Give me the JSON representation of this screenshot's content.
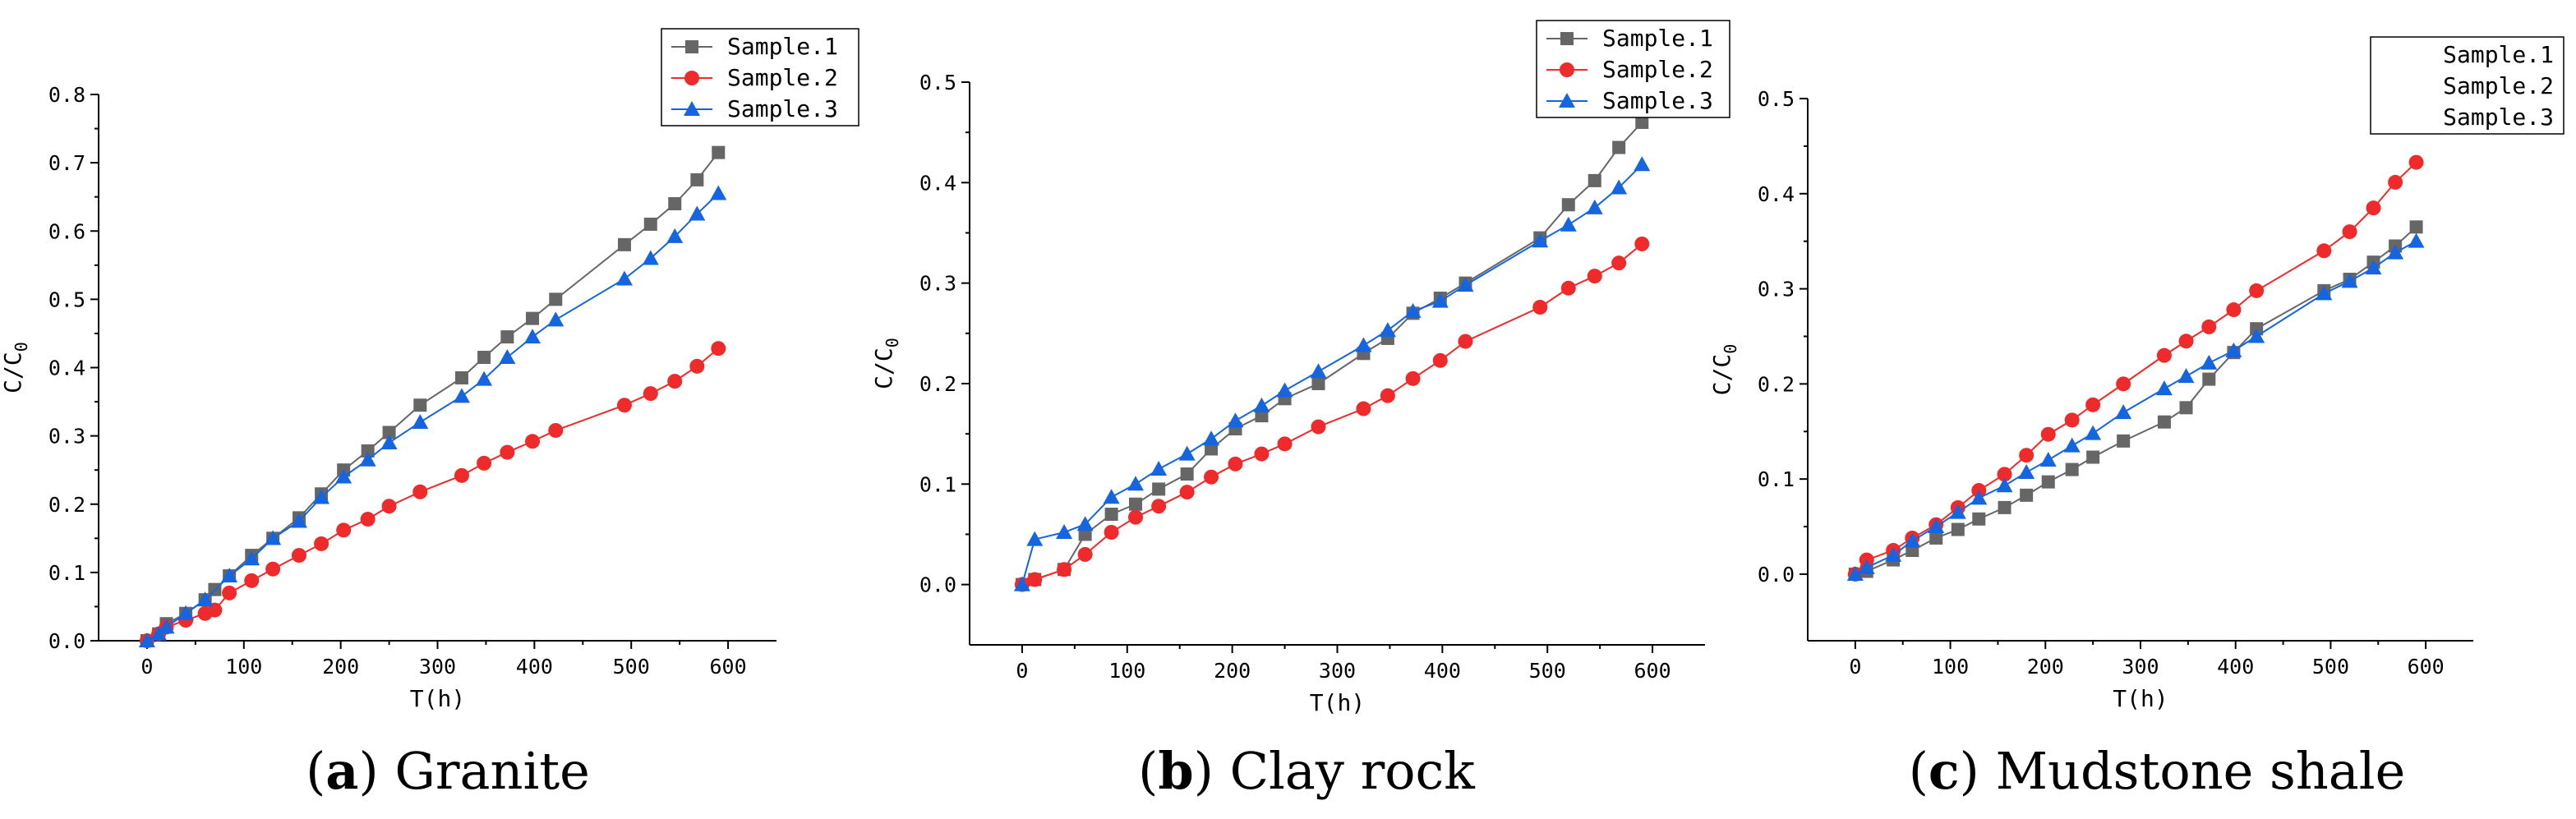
{
  "colors": {
    "Sample.1": "#666666",
    "Sample.2": "#ee2a2a",
    "Sample.3": "#1565e0"
  },
  "chart_data": [
    {
      "type": "line",
      "caption_letter": "a",
      "caption_text": "Granite",
      "xlabel": "T(h)",
      "ylabel": "C/C",
      "ylabel_sub": "0",
      "xlim": [
        -50,
        650
      ],
      "ylim": [
        0,
        0.8
      ],
      "xticks": [
        0,
        100,
        200,
        300,
        400,
        500,
        600
      ],
      "yticks": [
        0.0,
        0.1,
        0.2,
        0.3,
        0.4,
        0.5,
        0.6,
        0.7,
        0.8
      ],
      "ytick_labels": [
        "0.0",
        "0.1",
        "0.2",
        "0.3",
        "0.4",
        "0.5",
        "0.6",
        "0.7",
        "0.8"
      ],
      "legend": [
        "Sample.1",
        "Sample.2",
        "Sample.3"
      ],
      "legend_markers": true,
      "series": [
        {
          "name": "Sample.1",
          "marker": "square",
          "x": [
            0,
            12,
            20,
            40,
            60,
            70,
            85,
            108,
            130,
            157,
            180,
            203,
            228,
            250,
            282,
            325,
            348,
            372,
            398,
            422,
            493,
            520,
            545,
            568,
            590
          ],
          "y": [
            0.0,
            0.01,
            0.025,
            0.04,
            0.06,
            0.075,
            0.095,
            0.125,
            0.15,
            0.18,
            0.215,
            0.25,
            0.278,
            0.305,
            0.345,
            0.385,
            0.415,
            0.445,
            0.472,
            0.5,
            0.58,
            0.61,
            0.64,
            0.675,
            0.715
          ]
        },
        {
          "name": "Sample.2",
          "marker": "circle",
          "x": [
            0,
            12,
            20,
            40,
            60,
            70,
            85,
            108,
            130,
            157,
            180,
            203,
            228,
            250,
            282,
            325,
            348,
            372,
            398,
            422,
            493,
            520,
            545,
            568,
            590
          ],
          "y": [
            0.0,
            0.01,
            0.02,
            0.03,
            0.04,
            0.045,
            0.07,
            0.088,
            0.105,
            0.125,
            0.142,
            0.162,
            0.178,
            0.197,
            0.218,
            0.242,
            0.26,
            0.276,
            0.292,
            0.308,
            0.345,
            0.362,
            0.38,
            0.402,
            0.428
          ]
        },
        {
          "name": "Sample.3",
          "marker": "triangle",
          "x": [
            0,
            12,
            20,
            40,
            60,
            85,
            108,
            130,
            157,
            180,
            203,
            228,
            250,
            282,
            325,
            348,
            372,
            398,
            422,
            493,
            520,
            545,
            568,
            590
          ],
          "y": [
            0.0,
            0.01,
            0.02,
            0.04,
            0.06,
            0.095,
            0.12,
            0.15,
            0.175,
            0.21,
            0.24,
            0.265,
            0.29,
            0.32,
            0.358,
            0.383,
            0.415,
            0.445,
            0.47,
            0.53,
            0.56,
            0.592,
            0.625,
            0.655
          ]
        }
      ]
    },
    {
      "type": "line",
      "caption_letter": "b",
      "caption_text": "Clay rock",
      "xlabel": "T(h)",
      "ylabel": "C/C",
      "ylabel_sub": "0",
      "xlim": [
        -50,
        650
      ],
      "ylim": [
        -0.06,
        0.5
      ],
      "xticks": [
        0,
        100,
        200,
        300,
        400,
        500,
        600
      ],
      "yticks": [
        0.0,
        0.1,
        0.2,
        0.3,
        0.4,
        0.5
      ],
      "ytick_labels": [
        "0.0",
        "0.1",
        "0.2",
        "0.3",
        "0.4",
        "0.5"
      ],
      "legend": [
        "Sample.1",
        "Sample.2",
        "Sample.3"
      ],
      "legend_markers": true,
      "series": [
        {
          "name": "Sample.1",
          "marker": "square",
          "x": [
            0,
            12,
            40,
            60,
            85,
            108,
            130,
            157,
            180,
            203,
            228,
            250,
            282,
            325,
            348,
            372,
            398,
            422,
            493,
            520,
            545,
            568,
            590
          ],
          "y": [
            0.0,
            0.005,
            0.015,
            0.05,
            0.07,
            0.08,
            0.095,
            0.11,
            0.135,
            0.155,
            0.168,
            0.185,
            0.2,
            0.23,
            0.245,
            0.27,
            0.285,
            0.3,
            0.345,
            0.378,
            0.402,
            0.435,
            0.46
          ]
        },
        {
          "name": "Sample.2",
          "marker": "circle",
          "x": [
            0,
            12,
            40,
            60,
            85,
            108,
            130,
            157,
            180,
            203,
            228,
            250,
            282,
            325,
            348,
            372,
            398,
            422,
            493,
            520,
            545,
            568,
            590
          ],
          "y": [
            0.0,
            0.005,
            0.015,
            0.03,
            0.052,
            0.067,
            0.078,
            0.092,
            0.107,
            0.12,
            0.13,
            0.14,
            0.157,
            0.175,
            0.188,
            0.205,
            0.223,
            0.242,
            0.276,
            0.295,
            0.307,
            0.32,
            0.339
          ]
        },
        {
          "name": "Sample.3",
          "marker": "triangle",
          "x": [
            0,
            12,
            40,
            60,
            85,
            108,
            130,
            157,
            180,
            203,
            228,
            250,
            282,
            325,
            348,
            372,
            398,
            422,
            493,
            520,
            545,
            568,
            590
          ],
          "y": [
            0.0,
            0.045,
            0.052,
            0.06,
            0.087,
            0.1,
            0.115,
            0.13,
            0.145,
            0.163,
            0.178,
            0.193,
            0.212,
            0.238,
            0.253,
            0.272,
            0.282,
            0.298,
            0.342,
            0.358,
            0.375,
            0.395,
            0.418
          ]
        }
      ]
    },
    {
      "type": "line",
      "caption_letter": "c",
      "caption_text": "Mudstone shale",
      "xlabel": "T(h)",
      "ylabel": "C/C",
      "ylabel_sub": "0",
      "xlim": [
        -50,
        650
      ],
      "ylim": [
        -0.07,
        0.5
      ],
      "xticks": [
        0,
        100,
        200,
        300,
        400,
        500,
        600
      ],
      "yticks": [
        0.0,
        0.1,
        0.2,
        0.3,
        0.4,
        0.5
      ],
      "ytick_labels": [
        "0.0",
        "0.1",
        "0.2",
        "0.3",
        "0.4",
        "0.5"
      ],
      "legend": [
        "Sample.1",
        "Sample.2",
        "Sample.3"
      ],
      "legend_markers": false,
      "series": [
        {
          "name": "Sample.1",
          "marker": "square",
          "x": [
            0,
            12,
            40,
            60,
            85,
            108,
            130,
            157,
            180,
            203,
            228,
            250,
            282,
            325,
            348,
            372,
            398,
            422,
            493,
            520,
            545,
            568,
            590
          ],
          "y": [
            0.0,
            0.003,
            0.015,
            0.025,
            0.038,
            0.047,
            0.058,
            0.07,
            0.083,
            0.097,
            0.11,
            0.123,
            0.14,
            0.16,
            0.175,
            0.205,
            0.233,
            0.258,
            0.298,
            0.31,
            0.328,
            0.345,
            0.365
          ]
        },
        {
          "name": "Sample.2",
          "marker": "circle",
          "x": [
            0,
            12,
            40,
            60,
            85,
            108,
            130,
            157,
            180,
            203,
            228,
            250,
            282,
            325,
            348,
            372,
            398,
            422,
            493,
            520,
            545,
            568,
            590
          ],
          "y": [
            0.0,
            0.015,
            0.025,
            0.038,
            0.052,
            0.07,
            0.088,
            0.105,
            0.125,
            0.147,
            0.162,
            0.178,
            0.2,
            0.23,
            0.245,
            0.26,
            0.278,
            0.298,
            0.34,
            0.36,
            0.385,
            0.412,
            0.433
          ]
        },
        {
          "name": "Sample.3",
          "marker": "triangle",
          "x": [
            0,
            12,
            40,
            60,
            85,
            108,
            130,
            157,
            180,
            203,
            228,
            250,
            282,
            325,
            348,
            372,
            398,
            422,
            493,
            520,
            545,
            568,
            590
          ],
          "y": [
            0.0,
            0.007,
            0.02,
            0.035,
            0.05,
            0.065,
            0.08,
            0.093,
            0.107,
            0.12,
            0.135,
            0.148,
            0.17,
            0.195,
            0.208,
            0.222,
            0.235,
            0.25,
            0.295,
            0.308,
            0.322,
            0.338,
            0.35
          ]
        }
      ]
    }
  ]
}
